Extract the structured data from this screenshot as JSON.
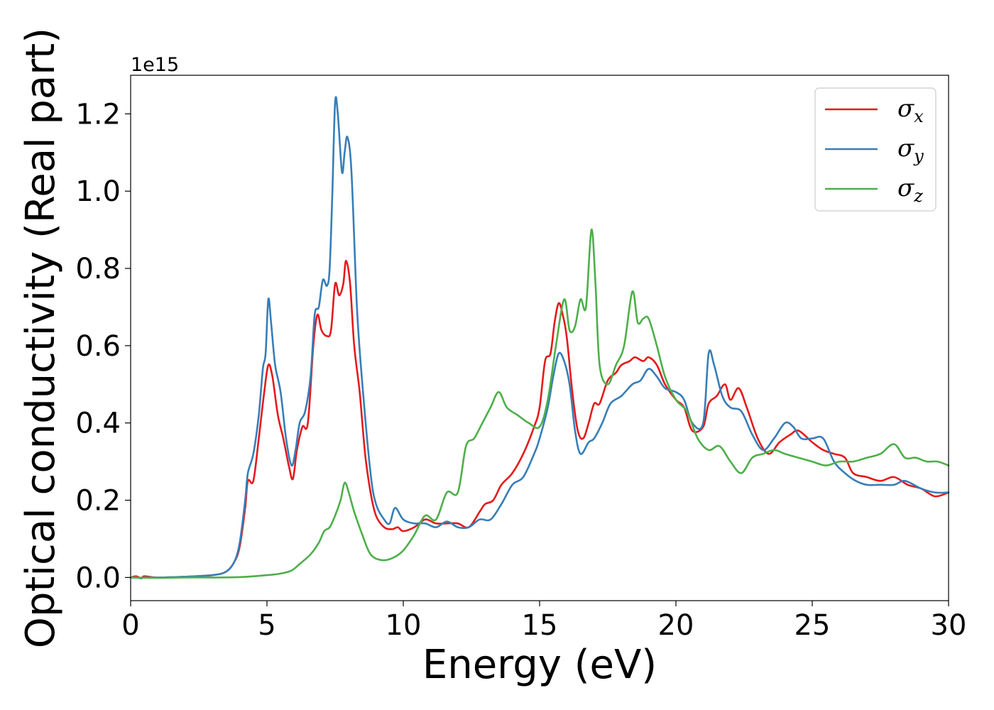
{
  "chart_data": {
    "type": "line",
    "xlabel": "Energy (eV)",
    "ylabel": "Optical conductivity (Real part)",
    "y_offset_label": "1e15",
    "xlim": [
      0,
      30
    ],
    "ylim": [
      -0.06,
      1.3
    ],
    "x_ticks": [
      0,
      5,
      10,
      15,
      20,
      25,
      30
    ],
    "x_tick_labels": [
      "0",
      "5",
      "10",
      "15",
      "20",
      "25",
      "30"
    ],
    "y_ticks": [
      0.0,
      0.2,
      0.4,
      0.6,
      0.8,
      1.0,
      1.2
    ],
    "y_tick_labels": [
      "0.0",
      "0.2",
      "0.4",
      "0.6",
      "0.8",
      "1.0",
      "1.2"
    ],
    "grid": false,
    "legend_position": "top-right",
    "series": [
      {
        "name": "σ",
        "subscript": "x",
        "color": "#e41a1c",
        "points": [
          [
            0,
            0.0
          ],
          [
            0.2,
            0.003
          ],
          [
            0.4,
            -0.002
          ],
          [
            0.5,
            0.003
          ],
          [
            1,
            0.0
          ],
          [
            2,
            0.002
          ],
          [
            3,
            0.006
          ],
          [
            3.5,
            0.015
          ],
          [
            3.8,
            0.04
          ],
          [
            4.0,
            0.08
          ],
          [
            4.2,
            0.18
          ],
          [
            4.3,
            0.25
          ],
          [
            4.5,
            0.25
          ],
          [
            4.7,
            0.36
          ],
          [
            4.9,
            0.48
          ],
          [
            5.05,
            0.55
          ],
          [
            5.2,
            0.52
          ],
          [
            5.4,
            0.42
          ],
          [
            5.6,
            0.36
          ],
          [
            5.8,
            0.29
          ],
          [
            5.95,
            0.255
          ],
          [
            6.1,
            0.33
          ],
          [
            6.3,
            0.39
          ],
          [
            6.5,
            0.4
          ],
          [
            6.7,
            0.6
          ],
          [
            6.85,
            0.68
          ],
          [
            7.0,
            0.64
          ],
          [
            7.2,
            0.625
          ],
          [
            7.35,
            0.64
          ],
          [
            7.5,
            0.76
          ],
          [
            7.65,
            0.73
          ],
          [
            7.8,
            0.76
          ],
          [
            7.9,
            0.82
          ],
          [
            8.05,
            0.76
          ],
          [
            8.2,
            0.6
          ],
          [
            8.4,
            0.48
          ],
          [
            8.6,
            0.32
          ],
          [
            8.8,
            0.22
          ],
          [
            9.0,
            0.16
          ],
          [
            9.3,
            0.13
          ],
          [
            9.6,
            0.125
          ],
          [
            9.8,
            0.13
          ],
          [
            10,
            0.12
          ],
          [
            10.4,
            0.13
          ],
          [
            10.8,
            0.15
          ],
          [
            11.2,
            0.14
          ],
          [
            11.6,
            0.14
          ],
          [
            12.0,
            0.14
          ],
          [
            12.4,
            0.13
          ],
          [
            12.8,
            0.17
          ],
          [
            13.0,
            0.19
          ],
          [
            13.3,
            0.2
          ],
          [
            13.6,
            0.24
          ],
          [
            14.0,
            0.27
          ],
          [
            14.4,
            0.32
          ],
          [
            14.8,
            0.39
          ],
          [
            15.0,
            0.44
          ],
          [
            15.2,
            0.56
          ],
          [
            15.4,
            0.58
          ],
          [
            15.55,
            0.66
          ],
          [
            15.7,
            0.71
          ],
          [
            15.85,
            0.68
          ],
          [
            16.0,
            0.62
          ],
          [
            16.2,
            0.48
          ],
          [
            16.4,
            0.38
          ],
          [
            16.6,
            0.36
          ],
          [
            16.8,
            0.4
          ],
          [
            17.0,
            0.45
          ],
          [
            17.2,
            0.45
          ],
          [
            17.5,
            0.51
          ],
          [
            17.8,
            0.53
          ],
          [
            18.0,
            0.55
          ],
          [
            18.3,
            0.56
          ],
          [
            18.5,
            0.57
          ],
          [
            18.8,
            0.56
          ],
          [
            19.0,
            0.57
          ],
          [
            19.3,
            0.55
          ],
          [
            19.6,
            0.5
          ],
          [
            20.0,
            0.46
          ],
          [
            20.3,
            0.44
          ],
          [
            20.6,
            0.38
          ],
          [
            21.0,
            0.39
          ],
          [
            21.2,
            0.45
          ],
          [
            21.5,
            0.47
          ],
          [
            21.8,
            0.5
          ],
          [
            22.0,
            0.46
          ],
          [
            22.3,
            0.49
          ],
          [
            22.6,
            0.44
          ],
          [
            23.0,
            0.36
          ],
          [
            23.4,
            0.32
          ],
          [
            23.8,
            0.35
          ],
          [
            24.2,
            0.37
          ],
          [
            24.5,
            0.38
          ],
          [
            25.0,
            0.35
          ],
          [
            25.4,
            0.33
          ],
          [
            25.8,
            0.32
          ],
          [
            26.2,
            0.31
          ],
          [
            26.5,
            0.27
          ],
          [
            27.0,
            0.26
          ],
          [
            27.5,
            0.25
          ],
          [
            28.0,
            0.26
          ],
          [
            28.5,
            0.24
          ],
          [
            29.0,
            0.23
          ],
          [
            29.5,
            0.21
          ],
          [
            30.0,
            0.22
          ]
        ]
      },
      {
        "name": "σ",
        "subscript": "y",
        "color": "#377eb8",
        "points": [
          [
            0,
            0.0
          ],
          [
            0.2,
            0.0
          ],
          [
            0.4,
            -0.002
          ],
          [
            0.5,
            0.0
          ],
          [
            1,
            0.0
          ],
          [
            2,
            0.002
          ],
          [
            3,
            0.006
          ],
          [
            3.5,
            0.015
          ],
          [
            3.8,
            0.04
          ],
          [
            4.0,
            0.09
          ],
          [
            4.2,
            0.2
          ],
          [
            4.3,
            0.27
          ],
          [
            4.5,
            0.32
          ],
          [
            4.7,
            0.42
          ],
          [
            4.85,
            0.54
          ],
          [
            4.95,
            0.58
          ],
          [
            5.05,
            0.72
          ],
          [
            5.15,
            0.66
          ],
          [
            5.3,
            0.55
          ],
          [
            5.5,
            0.48
          ],
          [
            5.7,
            0.36
          ],
          [
            5.9,
            0.29
          ],
          [
            6.05,
            0.33
          ],
          [
            6.2,
            0.4
          ],
          [
            6.4,
            0.43
          ],
          [
            6.6,
            0.52
          ],
          [
            6.75,
            0.68
          ],
          [
            6.9,
            0.7
          ],
          [
            7.05,
            0.77
          ],
          [
            7.2,
            0.755
          ],
          [
            7.3,
            0.8
          ],
          [
            7.4,
            1.0
          ],
          [
            7.5,
            1.23
          ],
          [
            7.6,
            1.2
          ],
          [
            7.75,
            1.05
          ],
          [
            7.85,
            1.1
          ],
          [
            7.95,
            1.14
          ],
          [
            8.1,
            1.05
          ],
          [
            8.3,
            0.7
          ],
          [
            8.5,
            0.5
          ],
          [
            8.8,
            0.27
          ],
          [
            9.0,
            0.19
          ],
          [
            9.3,
            0.15
          ],
          [
            9.5,
            0.14
          ],
          [
            9.7,
            0.18
          ],
          [
            10.0,
            0.15
          ],
          [
            10.4,
            0.14
          ],
          [
            10.8,
            0.14
          ],
          [
            11.2,
            0.13
          ],
          [
            11.6,
            0.145
          ],
          [
            12.0,
            0.13
          ],
          [
            12.4,
            0.13
          ],
          [
            12.8,
            0.15
          ],
          [
            13.2,
            0.15
          ],
          [
            13.6,
            0.19
          ],
          [
            14.0,
            0.24
          ],
          [
            14.4,
            0.26
          ],
          [
            14.8,
            0.32
          ],
          [
            15.0,
            0.36
          ],
          [
            15.3,
            0.44
          ],
          [
            15.5,
            0.52
          ],
          [
            15.7,
            0.58
          ],
          [
            15.9,
            0.56
          ],
          [
            16.1,
            0.5
          ],
          [
            16.3,
            0.38
          ],
          [
            16.5,
            0.32
          ],
          [
            16.8,
            0.35
          ],
          [
            17.0,
            0.36
          ],
          [
            17.3,
            0.4
          ],
          [
            17.6,
            0.45
          ],
          [
            18.0,
            0.47
          ],
          [
            18.4,
            0.5
          ],
          [
            18.7,
            0.51
          ],
          [
            19.0,
            0.54
          ],
          [
            19.3,
            0.52
          ],
          [
            19.6,
            0.49
          ],
          [
            20.0,
            0.48
          ],
          [
            20.3,
            0.46
          ],
          [
            20.6,
            0.4
          ],
          [
            21.0,
            0.4
          ],
          [
            21.2,
            0.58
          ],
          [
            21.4,
            0.55
          ],
          [
            21.7,
            0.47
          ],
          [
            22.0,
            0.44
          ],
          [
            22.4,
            0.43
          ],
          [
            22.8,
            0.37
          ],
          [
            23.2,
            0.33
          ],
          [
            23.6,
            0.36
          ],
          [
            24.0,
            0.4
          ],
          [
            24.3,
            0.39
          ],
          [
            24.6,
            0.36
          ],
          [
            25.0,
            0.36
          ],
          [
            25.4,
            0.36
          ],
          [
            25.8,
            0.3
          ],
          [
            26.2,
            0.27
          ],
          [
            26.6,
            0.25
          ],
          [
            27.0,
            0.24
          ],
          [
            27.5,
            0.24
          ],
          [
            28.0,
            0.24
          ],
          [
            28.4,
            0.25
          ],
          [
            29.0,
            0.23
          ],
          [
            29.5,
            0.22
          ],
          [
            30.0,
            0.22
          ]
        ]
      },
      {
        "name": "σ",
        "subscript": "z",
        "color": "#4daf4a",
        "points": [
          [
            0,
            0.0
          ],
          [
            1,
            -0.001
          ],
          [
            2,
            0.0
          ],
          [
            3,
            0.0
          ],
          [
            4,
            0.001
          ],
          [
            4.5,
            0.003
          ],
          [
            5,
            0.006
          ],
          [
            5.5,
            0.01
          ],
          [
            5.9,
            0.018
          ],
          [
            6.2,
            0.035
          ],
          [
            6.6,
            0.06
          ],
          [
            6.9,
            0.09
          ],
          [
            7.1,
            0.12
          ],
          [
            7.3,
            0.13
          ],
          [
            7.5,
            0.16
          ],
          [
            7.7,
            0.2
          ],
          [
            7.85,
            0.245
          ],
          [
            8.0,
            0.22
          ],
          [
            8.2,
            0.17
          ],
          [
            8.5,
            0.11
          ],
          [
            8.8,
            0.06
          ],
          [
            9.2,
            0.045
          ],
          [
            9.6,
            0.05
          ],
          [
            10.0,
            0.07
          ],
          [
            10.4,
            0.11
          ],
          [
            10.8,
            0.16
          ],
          [
            11.2,
            0.15
          ],
          [
            11.6,
            0.22
          ],
          [
            12.0,
            0.22
          ],
          [
            12.3,
            0.34
          ],
          [
            12.6,
            0.36
          ],
          [
            12.9,
            0.4
          ],
          [
            13.2,
            0.44
          ],
          [
            13.5,
            0.48
          ],
          [
            13.8,
            0.44
          ],
          [
            14.2,
            0.42
          ],
          [
            14.6,
            0.4
          ],
          [
            15.0,
            0.39
          ],
          [
            15.3,
            0.46
          ],
          [
            15.6,
            0.6
          ],
          [
            15.9,
            0.72
          ],
          [
            16.1,
            0.64
          ],
          [
            16.3,
            0.65
          ],
          [
            16.5,
            0.72
          ],
          [
            16.7,
            0.7
          ],
          [
            16.9,
            0.9
          ],
          [
            17.05,
            0.76
          ],
          [
            17.2,
            0.55
          ],
          [
            17.5,
            0.5
          ],
          [
            17.8,
            0.55
          ],
          [
            18.1,
            0.6
          ],
          [
            18.4,
            0.74
          ],
          [
            18.6,
            0.66
          ],
          [
            18.8,
            0.67
          ],
          [
            19.0,
            0.67
          ],
          [
            19.3,
            0.6
          ],
          [
            19.6,
            0.52
          ],
          [
            20.0,
            0.46
          ],
          [
            20.4,
            0.43
          ],
          [
            20.8,
            0.36
          ],
          [
            21.2,
            0.33
          ],
          [
            21.6,
            0.34
          ],
          [
            22.0,
            0.3
          ],
          [
            22.4,
            0.27
          ],
          [
            22.8,
            0.31
          ],
          [
            23.2,
            0.32
          ],
          [
            23.6,
            0.33
          ],
          [
            24.0,
            0.32
          ],
          [
            24.5,
            0.31
          ],
          [
            25.0,
            0.3
          ],
          [
            25.5,
            0.29
          ],
          [
            26.0,
            0.3
          ],
          [
            26.5,
            0.3
          ],
          [
            27.0,
            0.31
          ],
          [
            27.5,
            0.32
          ],
          [
            28.0,
            0.345
          ],
          [
            28.4,
            0.31
          ],
          [
            28.8,
            0.31
          ],
          [
            29.2,
            0.3
          ],
          [
            29.6,
            0.3
          ],
          [
            30.0,
            0.29
          ]
        ]
      }
    ]
  }
}
